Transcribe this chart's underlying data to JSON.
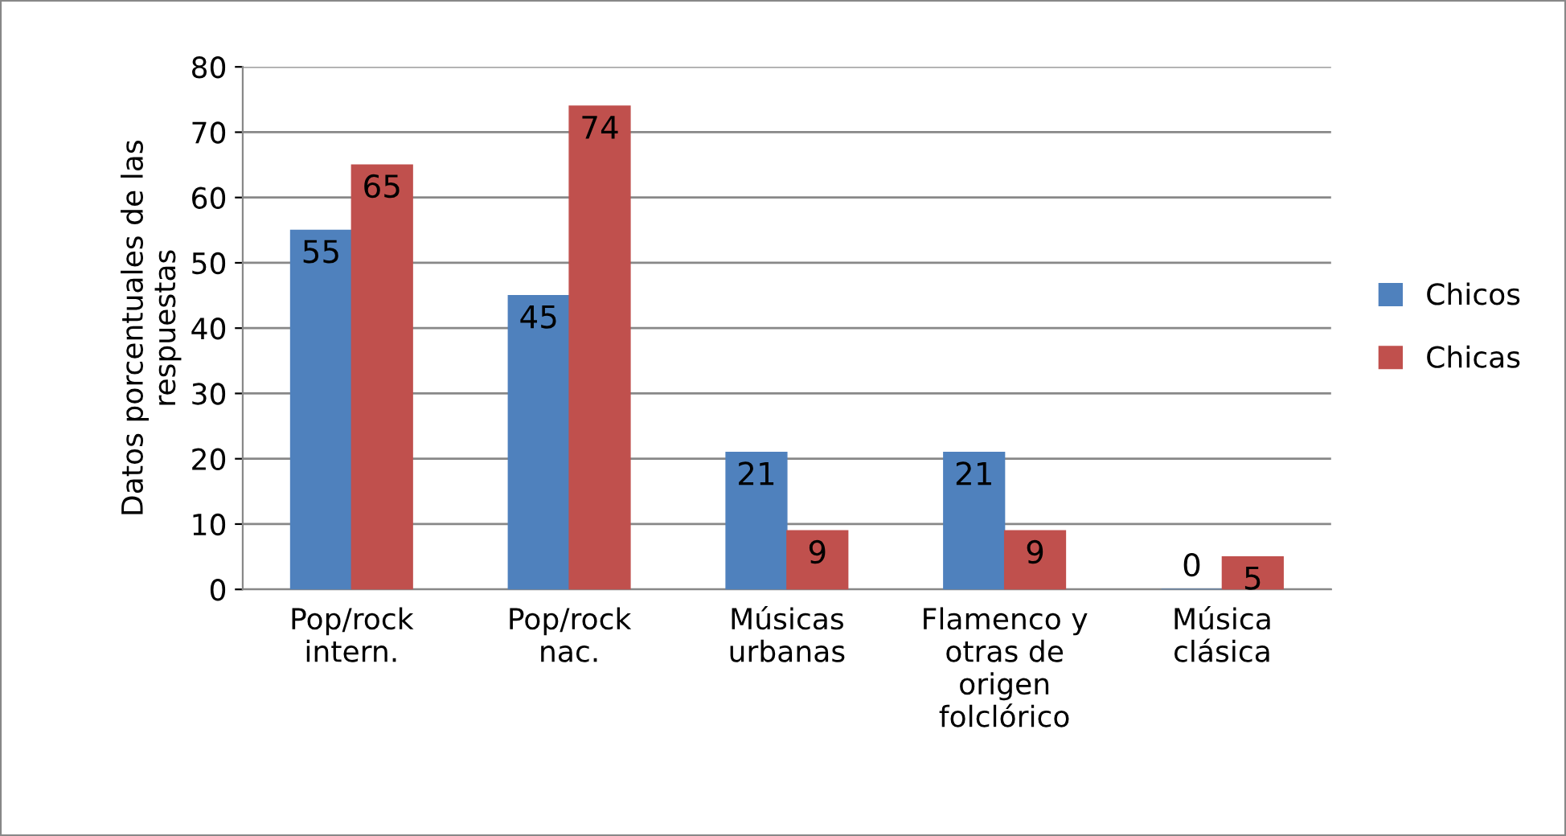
{
  "chart_data": {
    "type": "bar",
    "categories": [
      "Pop/rock\nintern.",
      "Pop/rock\nnac.",
      "Músicas\nurbanas",
      "Flamenco y\notras de\norigen\nfolclórico",
      "Música\nclásica"
    ],
    "series": [
      {
        "name": "Chicos",
        "color": "#4f81bd",
        "values": [
          55,
          45,
          21,
          21,
          0
        ]
      },
      {
        "name": "Chicas",
        "color": "#c0504d",
        "values": [
          65,
          74,
          9,
          9,
          5
        ]
      }
    ],
    "ylabel": "Datos porcentuales de las\nrespuestas",
    "ylim": [
      0,
      80
    ],
    "yticks": [
      0,
      10,
      20,
      30,
      40,
      50,
      60,
      70,
      80
    ],
    "grid": "y",
    "legend": "right",
    "data_labels": true
  }
}
